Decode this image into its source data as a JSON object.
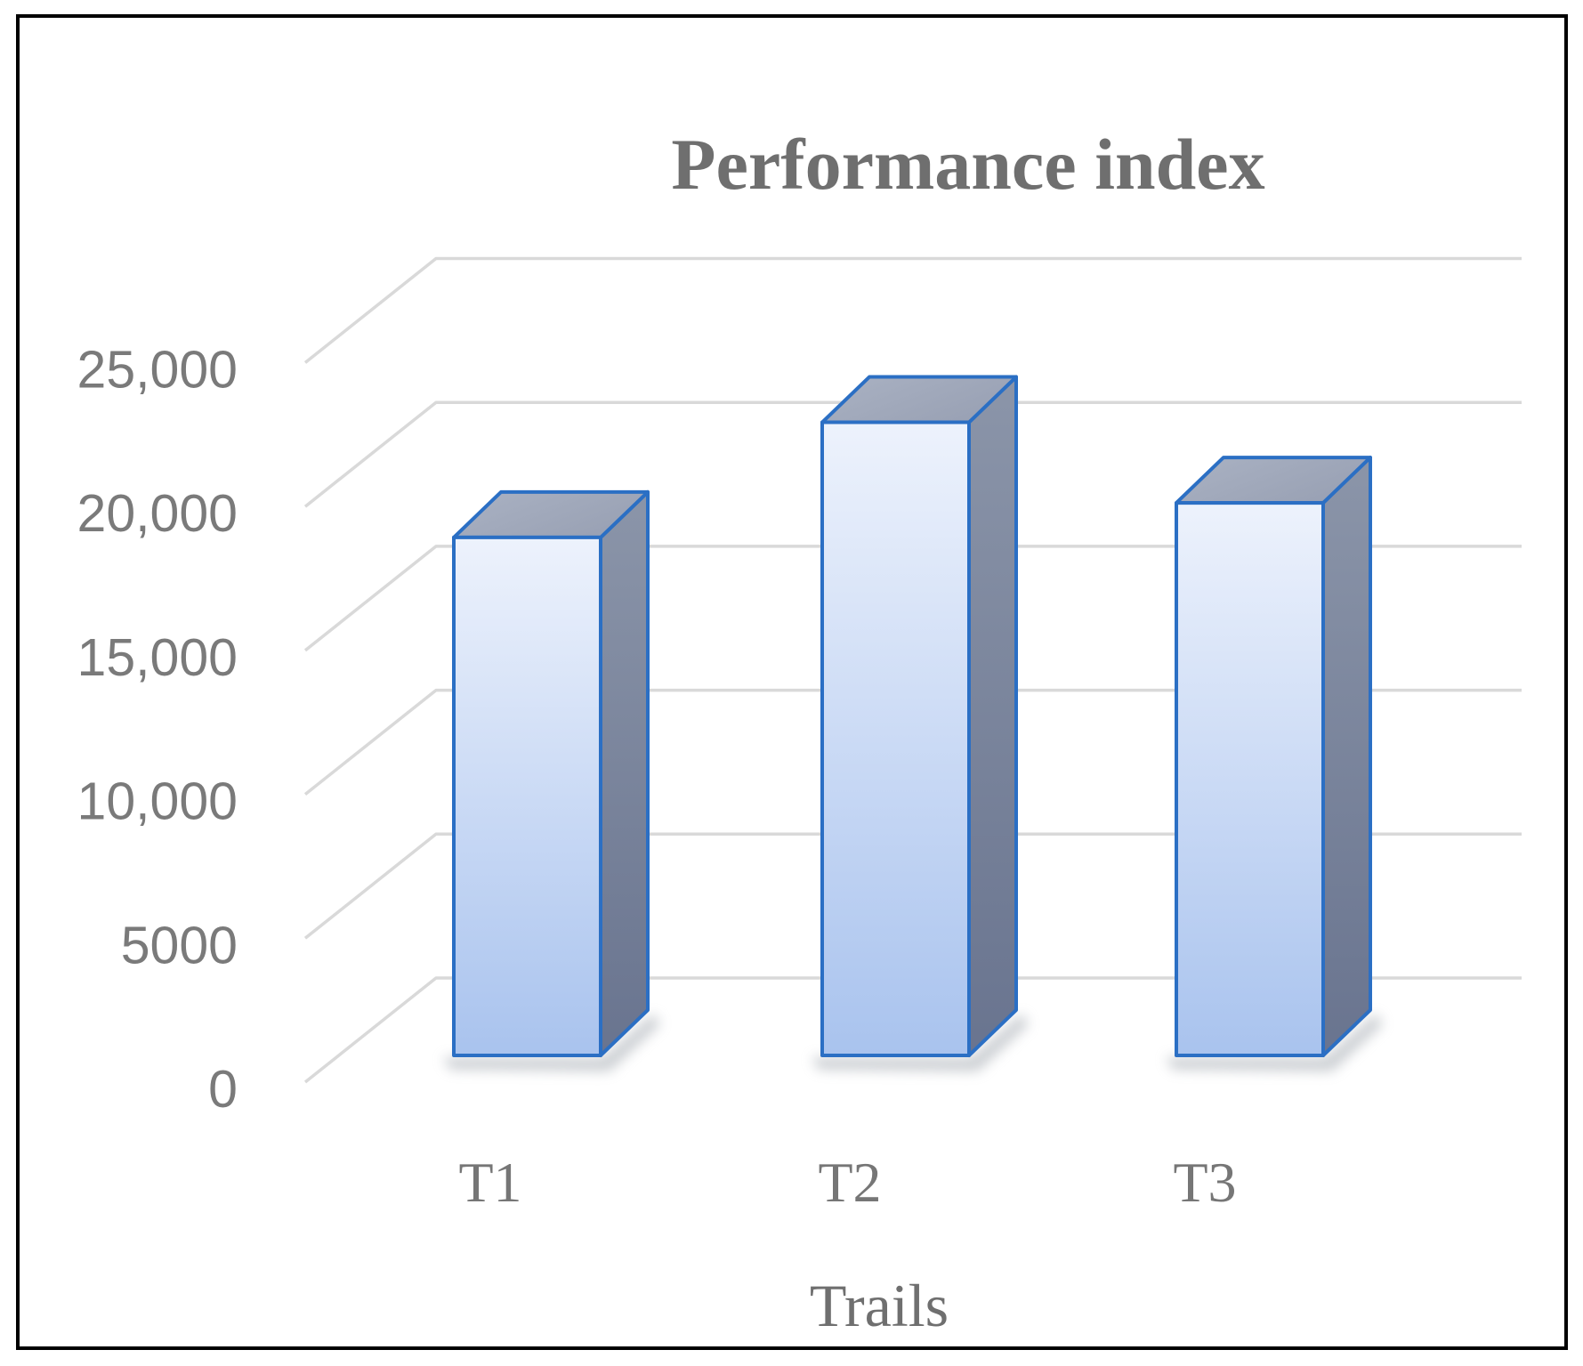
{
  "chart_data": {
    "type": "bar",
    "variant": "3d-column",
    "title": "Performance index",
    "xlabel": "Trails",
    "ylabel": "",
    "categories": [
      "T1",
      "T2",
      "T3"
    ],
    "values": [
      18000,
      22000,
      19200
    ],
    "series": [
      {
        "name": "Performance index",
        "values": [
          18000,
          22000,
          19200
        ]
      }
    ],
    "ylim": [
      0,
      25000
    ],
    "ytick_interval": 5000,
    "yticks": [
      {
        "label": "25,000",
        "value": 25000
      },
      {
        "label": "20,000",
        "value": 20000
      },
      {
        "label": "15,000",
        "value": 15000
      },
      {
        "label": "10,000",
        "value": 10000
      },
      {
        "label": "5000",
        "value": 5000
      },
      {
        "label": "0",
        "value": 0
      }
    ],
    "grid": true,
    "legend": false
  },
  "colors": {
    "background": "#ffffff",
    "frame_border": "#000000",
    "gridline": "#d9d9d9",
    "title_text": "#6f6f6f",
    "axis_text": "#7a7a7a",
    "category_text": "#767676",
    "bar_border": "#2b6fc4",
    "bar_front_top": "#edf2fc",
    "bar_front_bottom": "#a9c3ee",
    "bar_top_left": "#aab2c3",
    "bar_top_right": "#99a1b4",
    "bar_side_top": "#8b95a9",
    "bar_side_bottom": "#69748f",
    "shadow": "#a3a9b0"
  }
}
